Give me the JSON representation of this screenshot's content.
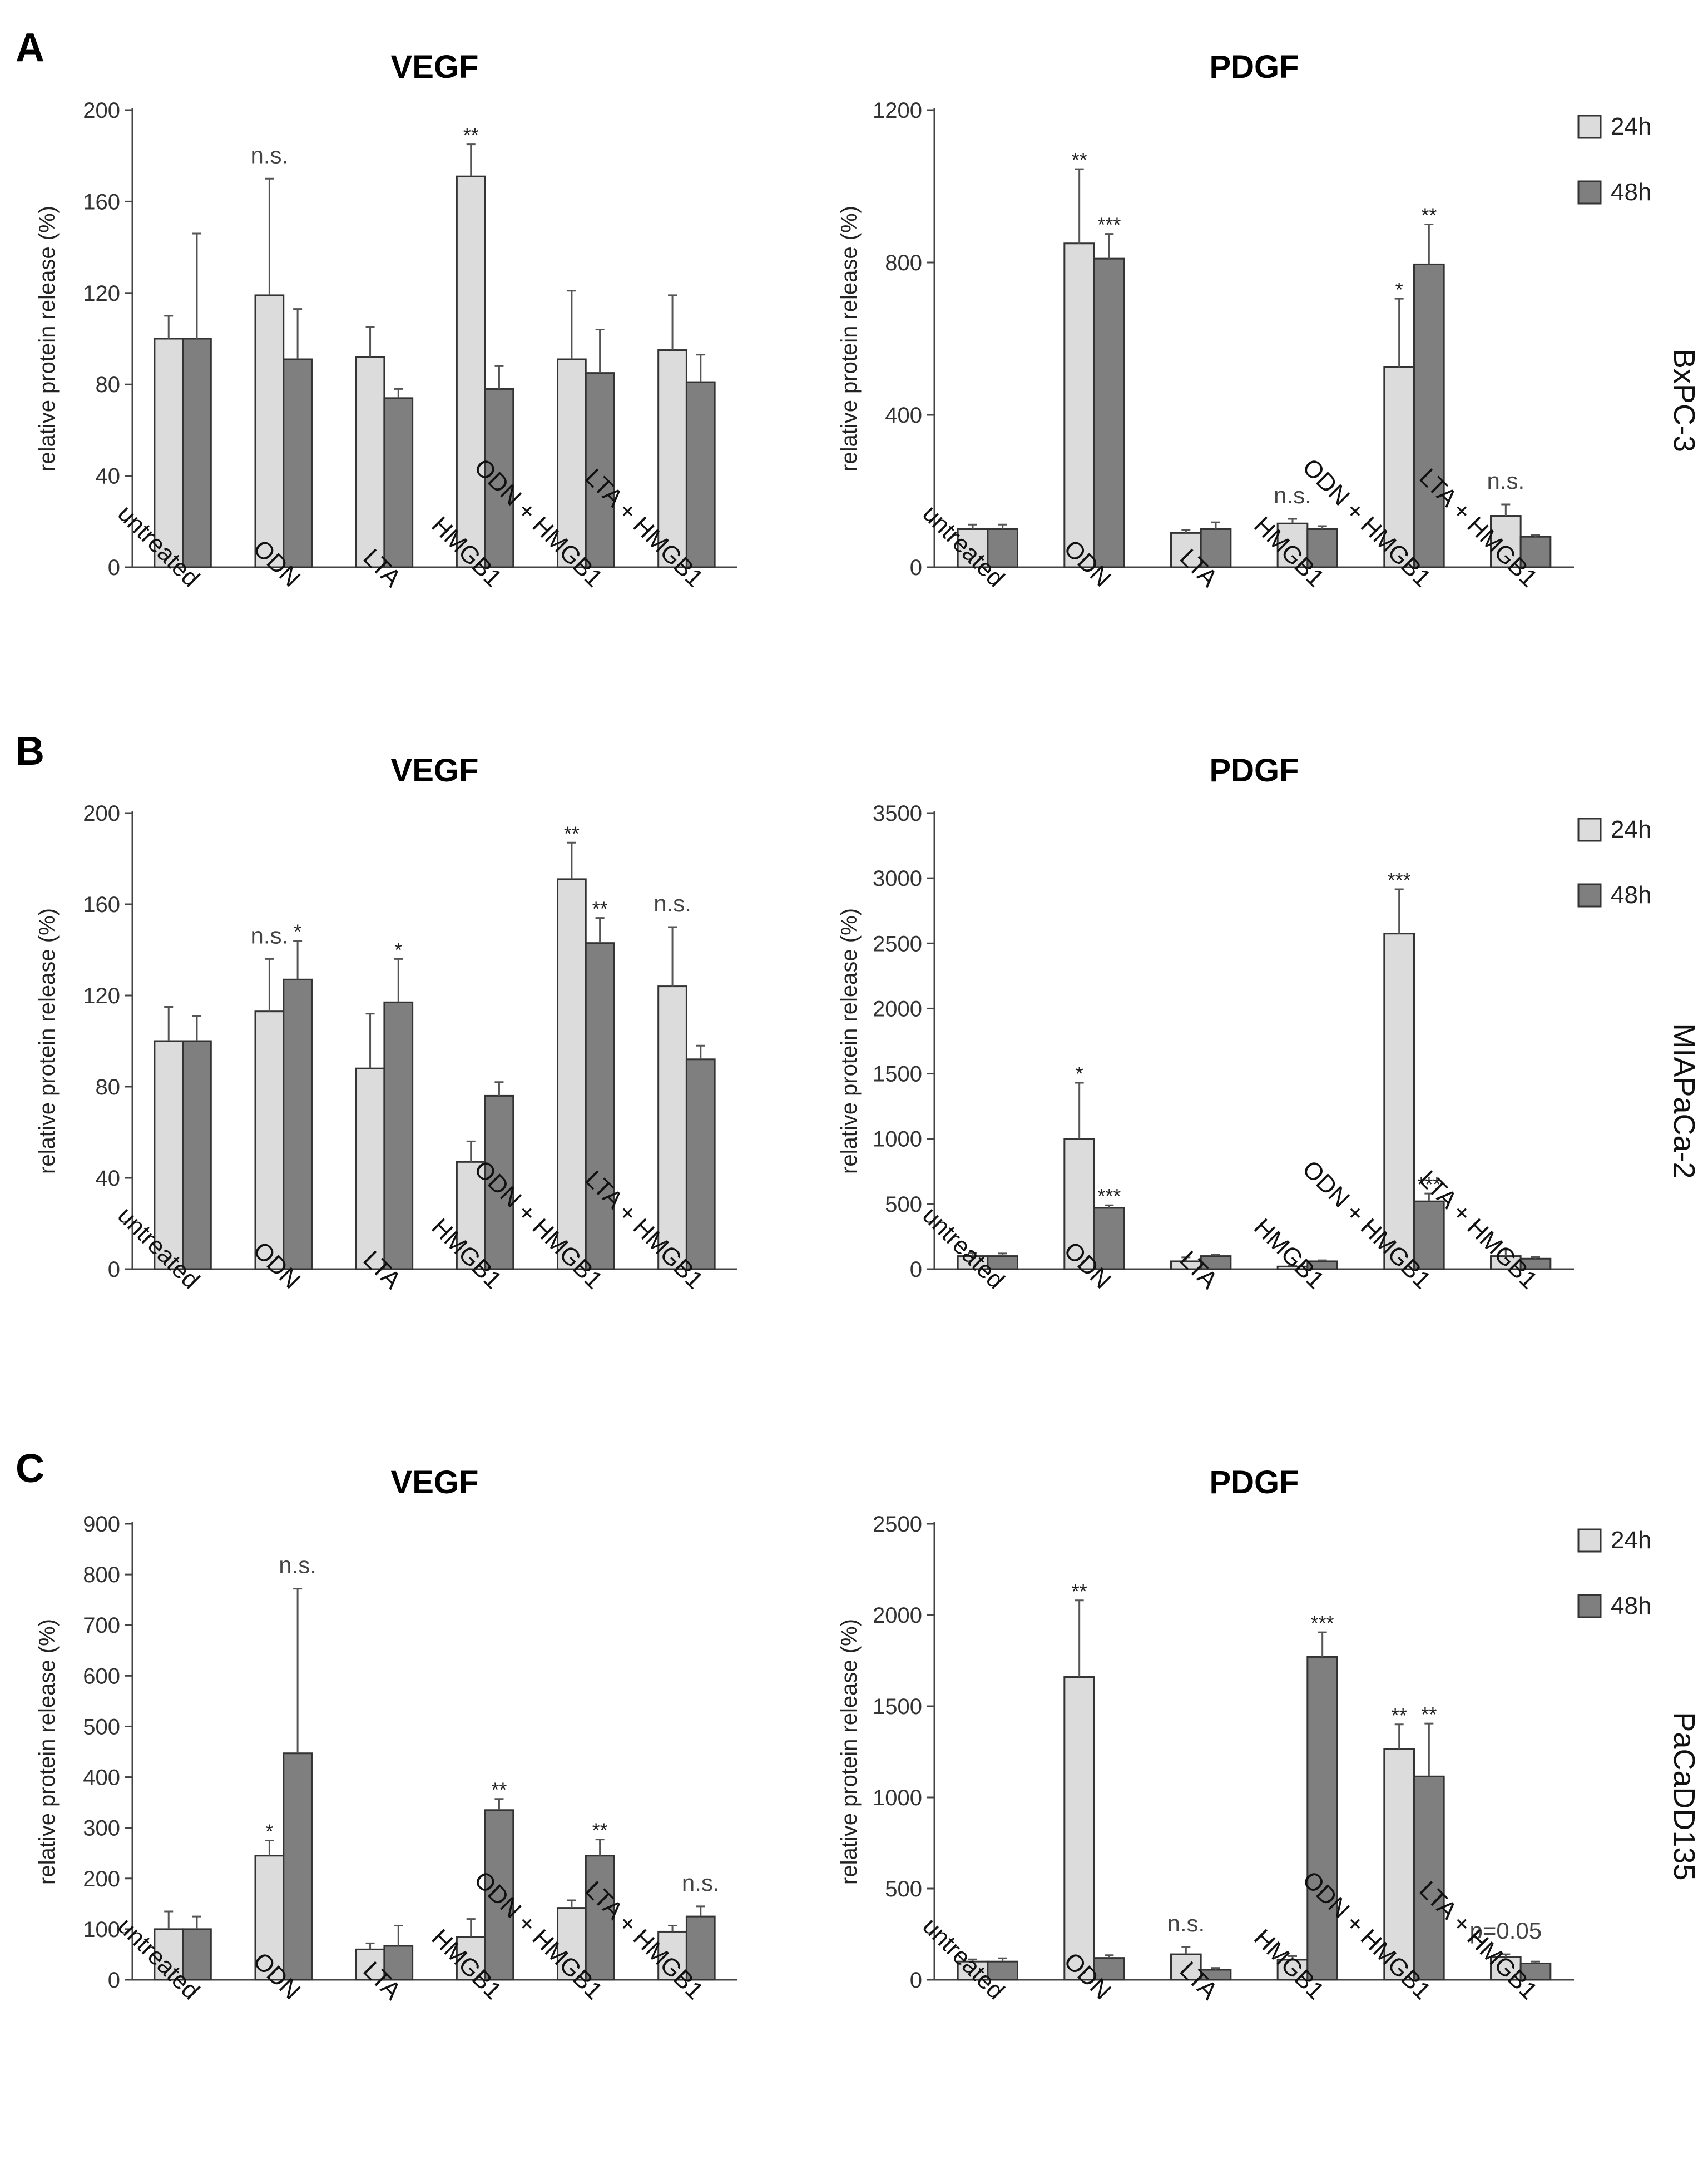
{
  "colors": {
    "24h": "#dcdcdc",
    "48h": "#7f7f7f",
    "axis": "#444444",
    "error": "#555555"
  },
  "legend": {
    "series": [
      "24h",
      "48h"
    ]
  },
  "panel_labels": [
    "A",
    "B",
    "C"
  ],
  "cell_lines": [
    "BxPC-3",
    "MIAPaCa-2",
    "PaCaDD135"
  ],
  "chart_data": [
    {
      "type": "bar",
      "panel": "A",
      "cell_line": "BxPC-3",
      "title": "VEGF",
      "ylabel": "relative protein release (%)",
      "ylim": [
        0,
        200
      ],
      "yticks": [
        0,
        40,
        80,
        120,
        160,
        200
      ],
      "categories": [
        "untreated",
        "ODN",
        "LTA",
        "HMGB1",
        "ODN + HMGB1",
        "LTA + HMGB1"
      ],
      "series": [
        {
          "name": "24h",
          "values": [
            100,
            119,
            92,
            171,
            91,
            95
          ],
          "errors": [
            10,
            51,
            13,
            14,
            30,
            24
          ]
        },
        {
          "name": "48h",
          "values": [
            100,
            91,
            74,
            78,
            85,
            81
          ],
          "errors": [
            46,
            22,
            4,
            10,
            19,
            12
          ]
        }
      ],
      "annotations": [
        {
          "category": 1,
          "series": "24h",
          "text": "n.s."
        },
        {
          "category": 3,
          "series": "24h",
          "text": "**"
        }
      ]
    },
    {
      "type": "bar",
      "panel": "A",
      "cell_line": "BxPC-3",
      "title": "PDGF",
      "ylabel": "relative protein release (%)",
      "ylim": [
        0,
        1200
      ],
      "yticks": [
        0,
        400,
        800,
        1200
      ],
      "legend": "top-right",
      "categories": [
        "untreated",
        "ODN",
        "LTA",
        "HMGB1",
        "ODN + HMGB1",
        "LTA + HMGB1"
      ],
      "series": [
        {
          "name": "24h",
          "values": [
            100,
            850,
            90,
            115,
            525,
            135
          ],
          "errors": [
            12,
            195,
            8,
            12,
            180,
            30
          ]
        },
        {
          "name": "48h",
          "values": [
            100,
            810,
            100,
            100,
            795,
            80
          ],
          "errors": [
            12,
            65,
            18,
            8,
            105,
            5
          ]
        }
      ],
      "annotations": [
        {
          "category": 1,
          "series": "24h",
          "text": "**"
        },
        {
          "category": 1,
          "series": "48h",
          "text": "***"
        },
        {
          "category": 3,
          "series": "24h",
          "text": "n.s."
        },
        {
          "category": 4,
          "series": "24h",
          "text": "*"
        },
        {
          "category": 4,
          "series": "48h",
          "text": "**"
        },
        {
          "category": 5,
          "series": "24h",
          "text": "n.s."
        }
      ]
    },
    {
      "type": "bar",
      "panel": "B",
      "cell_line": "MIAPaCa-2",
      "title": "VEGF",
      "ylabel": "relative protein release (%)",
      "ylim": [
        0,
        200
      ],
      "yticks": [
        0,
        40,
        80,
        120,
        160,
        200
      ],
      "categories": [
        "untreated",
        "ODN",
        "LTA",
        "HMGB1",
        "ODN + HMGB1",
        "LTA + HMGB1"
      ],
      "series": [
        {
          "name": "24h",
          "values": [
            100,
            113,
            88,
            47,
            171,
            124
          ],
          "errors": [
            15,
            23,
            24,
            9,
            16,
            26
          ]
        },
        {
          "name": "48h",
          "values": [
            100,
            127,
            117,
            76,
            143,
            92
          ],
          "errors": [
            11,
            17,
            19,
            6,
            11,
            6
          ]
        }
      ],
      "annotations": [
        {
          "category": 1,
          "series": "24h",
          "text": "n.s."
        },
        {
          "category": 1,
          "series": "48h",
          "text": "*"
        },
        {
          "category": 2,
          "series": "48h",
          "text": "*"
        },
        {
          "category": 4,
          "series": "24h",
          "text": "**"
        },
        {
          "category": 4,
          "series": "48h",
          "text": "**"
        },
        {
          "category": 5,
          "series": "24h",
          "text": "n.s."
        }
      ]
    },
    {
      "type": "bar",
      "panel": "B",
      "cell_line": "MIAPaCa-2",
      "title": "PDGF",
      "ylabel": "relative protein release (%)",
      "ylim": [
        0,
        3500
      ],
      "yticks": [
        0,
        500,
        1000,
        1500,
        2000,
        2500,
        3000,
        3500
      ],
      "legend": "top-right",
      "categories": [
        "untreated",
        "ODN",
        "LTA",
        "HMGB1",
        "ODN + HMGB1",
        "LTA + HMGB1"
      ],
      "series": [
        {
          "name": "24h",
          "values": [
            100,
            1000,
            60,
            20,
            2575,
            100
          ],
          "errors": [
            25,
            430,
            30,
            8,
            340,
            50
          ]
        },
        {
          "name": "48h",
          "values": [
            100,
            470,
            100,
            60,
            520,
            80
          ],
          "errors": [
            20,
            20,
            12,
            8,
            60,
            12
          ]
        }
      ],
      "annotations": [
        {
          "category": 1,
          "series": "24h",
          "text": "*"
        },
        {
          "category": 1,
          "series": "48h",
          "text": "***"
        },
        {
          "category": 4,
          "series": "24h",
          "text": "***"
        },
        {
          "category": 4,
          "series": "48h",
          "text": "***"
        }
      ]
    },
    {
      "type": "bar",
      "panel": "C",
      "cell_line": "PaCaDD135",
      "title": "VEGF",
      "ylabel": "relative protein release (%)",
      "ylim": [
        0,
        900
      ],
      "yticks": [
        0,
        100,
        200,
        300,
        400,
        500,
        600,
        700,
        800,
        900
      ],
      "categories": [
        "untreated",
        "ODN",
        "LTA",
        "HMGB1",
        "ODN + HMGB1",
        "LTA + HMGB1"
      ],
      "series": [
        {
          "name": "24h",
          "values": [
            100,
            245,
            60,
            85,
            142,
            95
          ],
          "errors": [
            35,
            30,
            12,
            35,
            15,
            12
          ]
        },
        {
          "name": "48h",
          "values": [
            100,
            447,
            67,
            335,
            245,
            125
          ],
          "errors": [
            25,
            325,
            40,
            22,
            32,
            20
          ]
        }
      ],
      "annotations": [
        {
          "category": 1,
          "series": "24h",
          "text": "*"
        },
        {
          "category": 1,
          "series": "48h",
          "text": "n.s."
        },
        {
          "category": 3,
          "series": "48h",
          "text": "**"
        },
        {
          "category": 4,
          "series": "48h",
          "text": "**"
        },
        {
          "category": 5,
          "series": "48h",
          "text": "n.s."
        }
      ]
    },
    {
      "type": "bar",
      "panel": "C",
      "cell_line": "PaCaDD135",
      "title": "PDGF",
      "ylabel": "relative protein release (%)",
      "ylim": [
        0,
        2500
      ],
      "yticks": [
        0,
        500,
        1000,
        1500,
        2000,
        2500
      ],
      "legend": "top-right",
      "categories": [
        "untreated",
        "ODN",
        "LTA",
        "HMGB1",
        "ODN + HMGB1",
        "LTA + HMGB1"
      ],
      "series": [
        {
          "name": "24h",
          "values": [
            100,
            1660,
            140,
            110,
            1265,
            125
          ],
          "errors": [
            12,
            420,
            40,
            20,
            135,
            15
          ]
        },
        {
          "name": "48h",
          "values": [
            100,
            120,
            55,
            1770,
            1115,
            90
          ],
          "errors": [
            18,
            15,
            10,
            135,
            290,
            10
          ]
        }
      ],
      "annotations": [
        {
          "category": 1,
          "series": "24h",
          "text": "**"
        },
        {
          "category": 2,
          "series": "24h",
          "text": "n.s."
        },
        {
          "category": 3,
          "series": "48h",
          "text": "***"
        },
        {
          "category": 4,
          "series": "24h",
          "text": "**"
        },
        {
          "category": 4,
          "series": "48h",
          "text": "**"
        },
        {
          "category": 5,
          "series": "24h",
          "text": "p=0.05"
        }
      ]
    }
  ]
}
